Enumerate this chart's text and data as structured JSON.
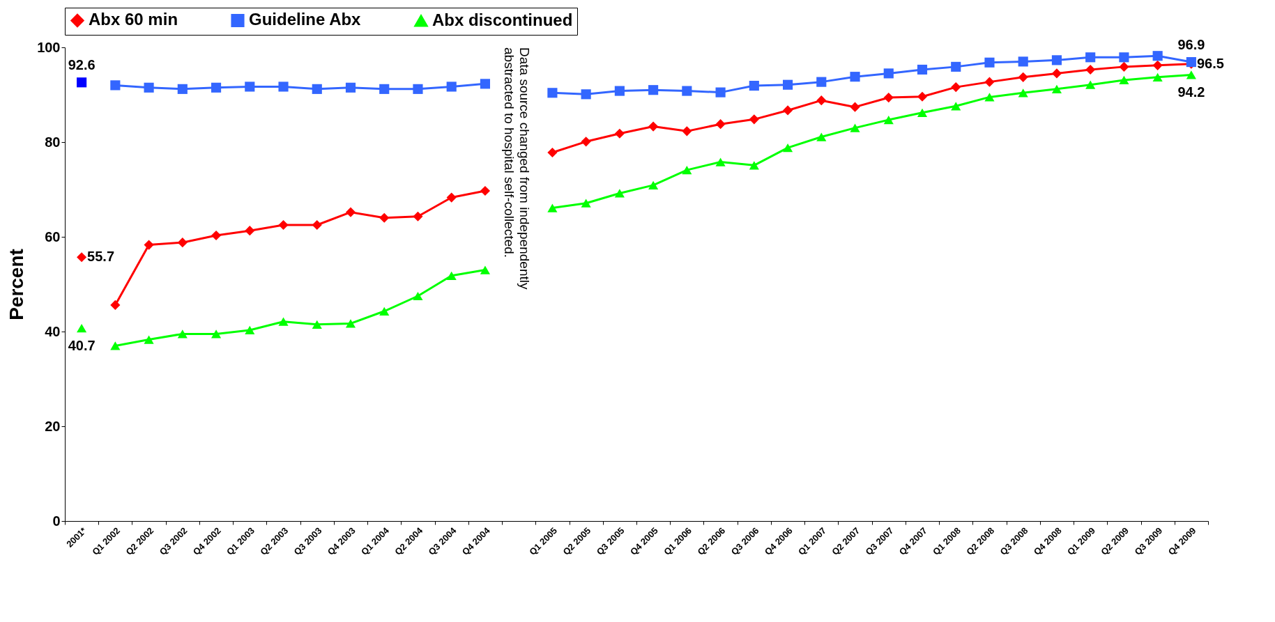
{
  "chart_data": {
    "type": "line",
    "categories": [
      "2001*",
      "Q1 2002",
      "Q2 2002",
      "Q3 2002",
      "Q4 2002",
      "Q1 2003",
      "Q2 2003",
      "Q3 2003",
      "Q4 2003",
      "Q1 2004",
      "Q2 2004",
      "Q3 2004",
      "Q4 2004",
      null,
      "Q1 2005",
      "Q2 2005",
      "Q3 2005",
      "Q4 2005",
      "Q1 2006",
      "Q2 2006",
      "Q3 2006",
      "Q4 2006",
      "Q1 2007",
      "Q2 2007",
      "Q3 2007",
      "Q4 2007",
      "Q1 2008",
      "Q2 2008",
      "Q3 2008",
      "Q4 2008",
      "Q1 2009",
      "Q2 2009",
      "Q3 2009",
      "Q4 2009"
    ],
    "series": [
      {
        "name": "Abx 60 min",
        "color": "#ff0000",
        "marker": "diamond",
        "values": [
          null,
          45.6,
          58.3,
          58.8,
          60.3,
          61.3,
          62.5,
          62.5,
          65.2,
          64.0,
          64.3,
          68.3,
          69.7,
          null,
          77.8,
          80.1,
          81.8,
          83.3,
          82.3,
          83.8,
          84.8,
          86.7,
          88.8,
          87.4,
          89.4,
          89.6,
          91.6,
          92.7,
          93.7,
          94.5,
          95.3,
          95.9,
          96.2,
          96.5
        ],
        "value_labels": [
          null,
          null,
          null,
          null,
          null,
          null,
          null,
          null,
          null,
          null,
          null,
          null,
          null,
          null,
          null,
          null,
          null,
          null,
          null,
          null,
          null,
          null,
          null,
          null,
          null,
          null,
          null,
          null,
          null,
          null,
          null,
          null,
          null,
          "96.5"
        ]
      },
      {
        "name": "Guideline Abx",
        "color": "#3366ff",
        "marker": "square",
        "values": [
          null,
          92.0,
          91.5,
          91.2,
          91.5,
          91.7,
          91.7,
          91.2,
          91.5,
          91.2,
          91.2,
          91.7,
          92.3,
          null,
          90.4,
          90.1,
          90.8,
          91.0,
          90.8,
          90.5,
          91.9,
          92.1,
          92.7,
          93.8,
          94.5,
          95.3,
          95.9,
          96.8,
          97.0,
          97.3,
          97.9,
          97.9,
          98.2,
          96.9
        ],
        "value_labels": [
          null,
          null,
          null,
          null,
          null,
          null,
          null,
          null,
          null,
          null,
          null,
          null,
          null,
          null,
          null,
          null,
          null,
          null,
          null,
          null,
          null,
          null,
          null,
          null,
          null,
          null,
          null,
          null,
          null,
          null,
          null,
          null,
          null,
          "96.9"
        ]
      },
      {
        "name": "Abx discontinued",
        "color": "#00ff00",
        "marker": "triangle",
        "values": [
          null,
          37.0,
          38.3,
          39.5,
          39.5,
          40.3,
          42.1,
          41.5,
          41.7,
          44.3,
          47.5,
          51.8,
          53.0,
          null,
          66.1,
          67.1,
          69.2,
          70.9,
          74.1,
          75.8,
          75.1,
          78.8,
          81.1,
          83.0,
          84.7,
          86.2,
          87.6,
          89.5,
          90.4,
          91.2,
          92.1,
          93.1,
          93.7,
          94.2
        ],
        "value_labels": [
          null,
          null,
          null,
          null,
          null,
          null,
          null,
          null,
          null,
          null,
          null,
          null,
          null,
          null,
          null,
          null,
          null,
          null,
          null,
          null,
          null,
          null,
          null,
          null,
          null,
          null,
          null,
          null,
          null,
          null,
          null,
          null,
          null,
          "94.2"
        ]
      },
      {
        "type": "scatter",
        "color": "#ff0000",
        "marker": "diamond",
        "values": [
          55.7,
          null,
          null,
          null,
          null,
          null,
          null,
          null,
          null,
          null,
          null,
          null,
          null,
          null,
          null,
          null,
          null,
          null,
          null,
          null,
          null,
          null,
          null,
          null,
          null,
          null,
          null,
          null,
          null,
          null,
          null,
          null,
          null,
          null
        ],
        "value_labels": [
          "55.7",
          null,
          null,
          null,
          null,
          null,
          null,
          null,
          null,
          null,
          null,
          null,
          null,
          null,
          null,
          null,
          null,
          null,
          null,
          null,
          null,
          null,
          null,
          null,
          null,
          null,
          null,
          null,
          null,
          null,
          null,
          null,
          null,
          null
        ]
      },
      {
        "type": "scatter",
        "color": "#0000ff",
        "marker": "square",
        "values": [
          92.6,
          null,
          null,
          null,
          null,
          null,
          null,
          null,
          null,
          null,
          null,
          null,
          null,
          null,
          null,
          null,
          null,
          null,
          null,
          null,
          null,
          null,
          null,
          null,
          null,
          null,
          null,
          null,
          null,
          null,
          null,
          null,
          null,
          null
        ],
        "value_labels": [
          "92.6",
          null,
          null,
          null,
          null,
          null,
          null,
          null,
          null,
          null,
          null,
          null,
          null,
          null,
          null,
          null,
          null,
          null,
          null,
          null,
          null,
          null,
          null,
          null,
          null,
          null,
          null,
          null,
          null,
          null,
          null,
          null,
          null,
          null
        ]
      },
      {
        "type": "scatter",
        "color": "#00ff00",
        "marker": "triangle",
        "values": [
          40.7,
          null,
          null,
          null,
          null,
          null,
          null,
          null,
          null,
          null,
          null,
          null,
          null,
          null,
          null,
          null,
          null,
          null,
          null,
          null,
          null,
          null,
          null,
          null,
          null,
          null,
          null,
          null,
          null,
          null,
          null,
          null,
          null,
          null
        ],
        "value_labels": [
          "40.7",
          null,
          null,
          null,
          null,
          null,
          null,
          null,
          null,
          null,
          null,
          null,
          null,
          null,
          null,
          null,
          null,
          null,
          null,
          null,
          null,
          null,
          null,
          null,
          null,
          null,
          null,
          null,
          null,
          null,
          null,
          null,
          null,
          null
        ]
      }
    ],
    "ylabel": "Percent",
    "ylim": [
      0,
      100
    ],
    "yticks": [
      0,
      20,
      40,
      60,
      80,
      100
    ],
    "annotations": [
      "Data source changed from independently\nabstracted to hospital self-collected."
    ],
    "grid": false,
    "legend": "top",
    "line_style": "solid"
  }
}
